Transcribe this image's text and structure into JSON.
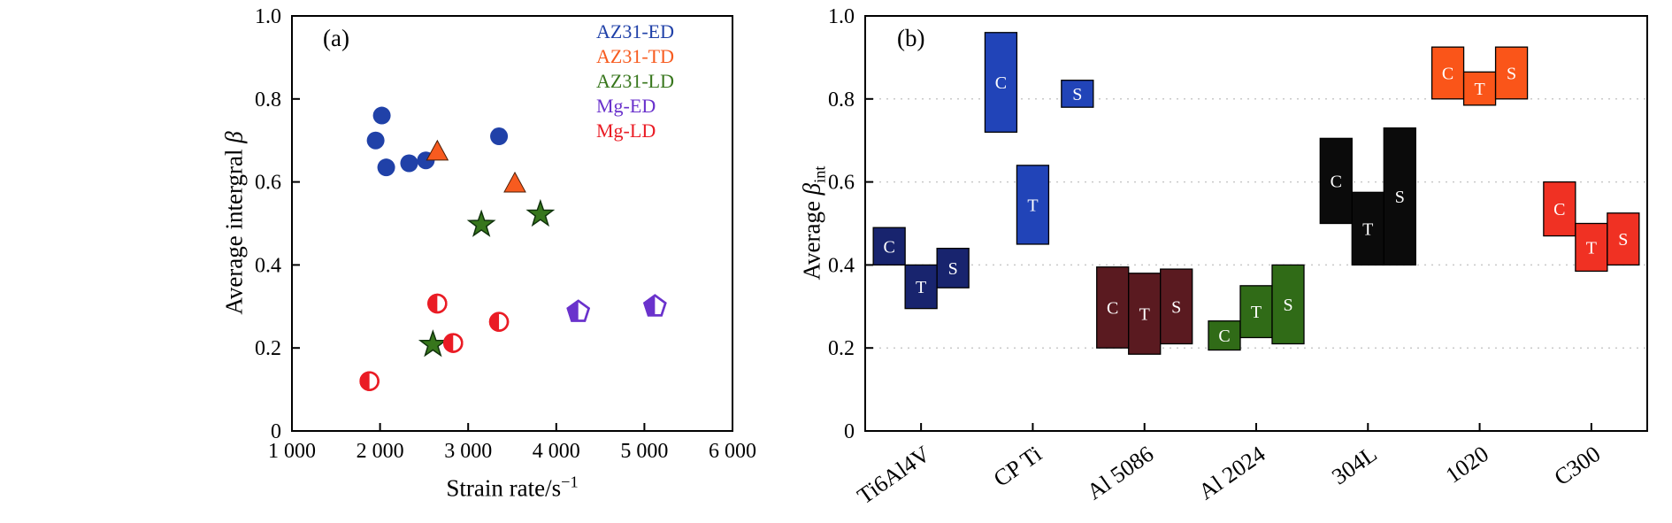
{
  "figure": {
    "background": "#ffffff"
  },
  "chart_data": [
    {
      "id": "panel_a",
      "type": "scatter",
      "panel_label": "(a)",
      "xlabel_text": "Strain rate/s",
      "xlabel_sup": "−1",
      "ylabel_prefix": "Average intergral ",
      "ylabel_symbol": "β",
      "xlim": [
        1000,
        6000
      ],
      "ylim": [
        0,
        1
      ],
      "xticks": [
        1000,
        2000,
        3000,
        4000,
        5000,
        6000
      ],
      "xtick_labels": [
        "1 000",
        "2 000",
        "3 000",
        "4 000",
        "5 000",
        "6 000"
      ],
      "yticks": [
        0,
        0.2,
        0.4,
        0.6,
        0.8,
        1.0
      ],
      "ytick_labels": [
        "0",
        "0.2",
        "0.4",
        "0.6",
        "0.8",
        "1.0"
      ],
      "legend_position": "top-right",
      "grid": false,
      "series": [
        {
          "name": "AZ31-ED",
          "color": "#2041a8",
          "marker": "circle",
          "points": [
            [
              1950,
              0.7
            ],
            [
              2020,
              0.76
            ],
            [
              2070,
              0.635
            ],
            [
              2330,
              0.645
            ],
            [
              2520,
              0.652
            ],
            [
              3350,
              0.71
            ]
          ]
        },
        {
          "name": "AZ31-TD",
          "color": "#f75b1f",
          "marker": "triangle",
          "points": [
            [
              2650,
              0.672
            ],
            [
              3530,
              0.595
            ]
          ]
        },
        {
          "name": "AZ31-LD",
          "color": "#37761c",
          "marker": "star",
          "points": [
            [
              2600,
              0.208
            ],
            [
              3150,
              0.497
            ],
            [
              3820,
              0.522
            ]
          ]
        },
        {
          "name": "Mg-ED",
          "color": "#6a32cc",
          "marker": "pentagon-half",
          "points": [
            [
              4250,
              0.287
            ],
            [
              5120,
              0.3
            ]
          ]
        },
        {
          "name": "Mg-LD",
          "color": "#ea1c25",
          "marker": "circle-half",
          "points": [
            [
              1880,
              0.12
            ],
            [
              2650,
              0.307
            ],
            [
              2830,
              0.212
            ],
            [
              3350,
              0.263
            ]
          ]
        }
      ]
    },
    {
      "id": "panel_b",
      "type": "range-bar",
      "panel_label": "(b)",
      "ylabel_prefix": "Average ",
      "ylabel_symbol": "β",
      "ylabel_sub": "int",
      "ylim": [
        0,
        1
      ],
      "yticks": [
        0,
        0.2,
        0.4,
        0.6,
        0.8,
        1.0
      ],
      "ytick_labels": [
        "0",
        "0.2",
        "0.4",
        "0.6",
        "0.8",
        "1.0"
      ],
      "gridlines": [
        0.2,
        0.4,
        0.6,
        0.8
      ],
      "grid": "dashed-horizontal",
      "categories": [
        "Ti6Al4V",
        "CP Ti",
        "Al 5086",
        "Al 2024",
        "304L",
        "1020",
        "C300"
      ],
      "groups": [
        {
          "category": "Ti6Al4V",
          "color": "#18246e",
          "boxes": [
            {
              "label": "C",
              "low": 0.4,
              "high": 0.49,
              "slot": -1
            },
            {
              "label": "T",
              "low": 0.295,
              "high": 0.4,
              "slot": 0
            },
            {
              "label": "S",
              "low": 0.345,
              "high": 0.44,
              "slot": 1
            }
          ]
        },
        {
          "category": "CP Ti",
          "color": "#2144b8",
          "boxes": [
            {
              "label": "C",
              "low": 0.72,
              "high": 0.96,
              "slot": -1
            },
            {
              "label": "T",
              "low": 0.45,
              "high": 0.64,
              "slot": 0
            },
            {
              "label": "S",
              "low": 0.78,
              "high": 0.845,
              "slot": 1.4
            }
          ]
        },
        {
          "category": "Al 5086",
          "color": "#5a1a20",
          "boxes": [
            {
              "label": "C",
              "low": 0.2,
              "high": 0.395,
              "slot": -1
            },
            {
              "label": "T",
              "low": 0.185,
              "high": 0.38,
              "slot": 0
            },
            {
              "label": "S",
              "low": 0.21,
              "high": 0.39,
              "slot": 1
            }
          ]
        },
        {
          "category": "Al 2024",
          "color": "#306b17",
          "boxes": [
            {
              "label": "C",
              "low": 0.195,
              "high": 0.265,
              "slot": -1
            },
            {
              "label": "T",
              "low": 0.225,
              "high": 0.35,
              "slot": 0
            },
            {
              "label": "S",
              "low": 0.21,
              "high": 0.4,
              "slot": 1
            }
          ]
        },
        {
          "category": "304L",
          "color": "#0b0b0b",
          "boxes": [
            {
              "label": "C",
              "low": 0.5,
              "high": 0.705,
              "slot": -1
            },
            {
              "label": "T",
              "low": 0.4,
              "high": 0.575,
              "slot": 0
            },
            {
              "label": "S",
              "low": 0.4,
              "high": 0.73,
              "slot": 1
            }
          ]
        },
        {
          "category": "1020",
          "color": "#fa5519",
          "boxes": [
            {
              "label": "C",
              "low": 0.8,
              "high": 0.925,
              "slot": -1
            },
            {
              "label": "T",
              "low": 0.785,
              "high": 0.865,
              "slot": 0
            },
            {
              "label": "S",
              "low": 0.8,
              "high": 0.925,
              "slot": 1
            }
          ]
        },
        {
          "category": "C300",
          "color": "#f03123",
          "boxes": [
            {
              "label": "C",
              "low": 0.47,
              "high": 0.6,
              "slot": -1
            },
            {
              "label": "T",
              "low": 0.385,
              "high": 0.5,
              "slot": 0
            },
            {
              "label": "S",
              "low": 0.4,
              "high": 0.525,
              "slot": 1
            }
          ]
        }
      ]
    }
  ]
}
